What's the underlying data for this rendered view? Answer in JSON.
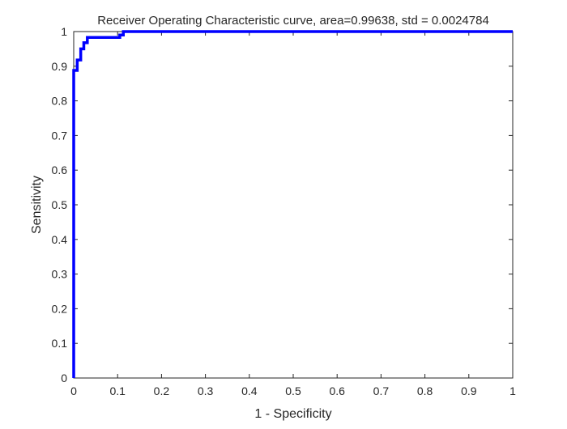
{
  "chart_data": {
    "type": "line",
    "title": "Receiver Operating Characteristic curve, area=0.99638, std = 0.0024784",
    "xlabel": "1 - Specificity",
    "ylabel": "Sensitivity",
    "xlim": [
      0,
      1
    ],
    "ylim": [
      0,
      1
    ],
    "xticks": [
      "0",
      "0.1",
      "0.2",
      "0.3",
      "0.4",
      "0.5",
      "0.6",
      "0.7",
      "0.8",
      "0.9",
      "1"
    ],
    "yticks": [
      "0",
      "0.1",
      "0.2",
      "0.3",
      "0.4",
      "0.5",
      "0.6",
      "0.7",
      "0.8",
      "0.9",
      "1"
    ],
    "grid": false,
    "line_color": "#0000ff",
    "axis_color": "#262626",
    "series": [
      {
        "x": [
          0,
          0,
          0.008,
          0.008,
          0.016,
          0.016,
          0.023,
          0.023,
          0.031,
          0.031,
          0.105,
          0.105,
          0.113,
          0.113,
          1
        ],
        "y": [
          0,
          0.888,
          0.888,
          0.918,
          0.918,
          0.95,
          0.95,
          0.968,
          0.968,
          0.983,
          0.983,
          0.99,
          0.99,
          1,
          1
        ]
      }
    ]
  }
}
